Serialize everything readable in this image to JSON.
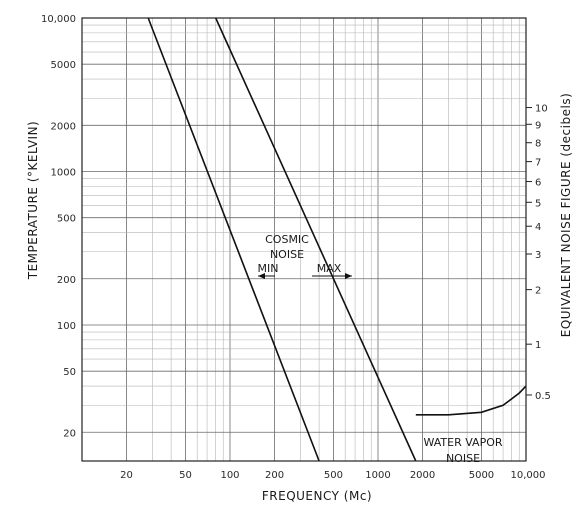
{
  "chart_data": {
    "type": "line",
    "title": "",
    "xlabel": "FREQUENCY (Mc)",
    "ylabel": "TEMPERATURE (°KELVIN)",
    "y2label": "EQUIVALENT NOISE FIGURE (decibels)",
    "xscale": "log",
    "yscale": "log",
    "xlim": [
      10,
      10000
    ],
    "ylim": [
      13,
      10000
    ],
    "grid": true,
    "x_ticks": [
      20,
      50,
      100,
      200,
      500,
      1000,
      2000,
      5000,
      10000
    ],
    "x_tick_labels": [
      "20",
      "50",
      "100",
      "200",
      "500",
      "1000",
      "2000",
      "5000",
      "10,000"
    ],
    "y_ticks": [
      20,
      50,
      100,
      200,
      500,
      1000,
      2000,
      5000,
      10000
    ],
    "y_tick_labels": [
      "20",
      "50",
      "100",
      "200",
      "500",
      "1000",
      "2000",
      "5000",
      "10,000"
    ],
    "y2_ticks": [
      {
        "label": "0.5",
        "temperature": 35
      },
      {
        "label": "1",
        "temperature": 75
      },
      {
        "label": "2",
        "temperature": 170
      },
      {
        "label": "3",
        "temperature": 290
      },
      {
        "label": "4",
        "temperature": 440
      },
      {
        "label": "5",
        "temperature": 630
      },
      {
        "label": "6",
        "temperature": 860
      },
      {
        "label": "7",
        "temperature": 1160
      },
      {
        "label": "8",
        "temperature": 1540
      },
      {
        "label": "9",
        "temperature": 2030
      },
      {
        "label": "10",
        "temperature": 2610
      }
    ],
    "series": [
      {
        "name": "MIN",
        "points": [
          [
            28,
            10000
          ],
          [
            400,
            13
          ]
        ]
      },
      {
        "name": "MAX",
        "points": [
          [
            80,
            10000
          ],
          [
            1800,
            13
          ]
        ]
      },
      {
        "name": "WATER VAPOR NOISE",
        "points": [
          [
            1800,
            26
          ],
          [
            3000,
            26
          ],
          [
            5000,
            27
          ],
          [
            7000,
            30
          ],
          [
            9000,
            36
          ],
          [
            10000,
            40
          ]
        ]
      }
    ],
    "annotations": {
      "cosmic": [
        "COSMIC",
        "NOISE"
      ],
      "min": "MIN",
      "max": "MAX",
      "water": [
        "WATER VAPOR",
        "NOISE"
      ]
    }
  }
}
